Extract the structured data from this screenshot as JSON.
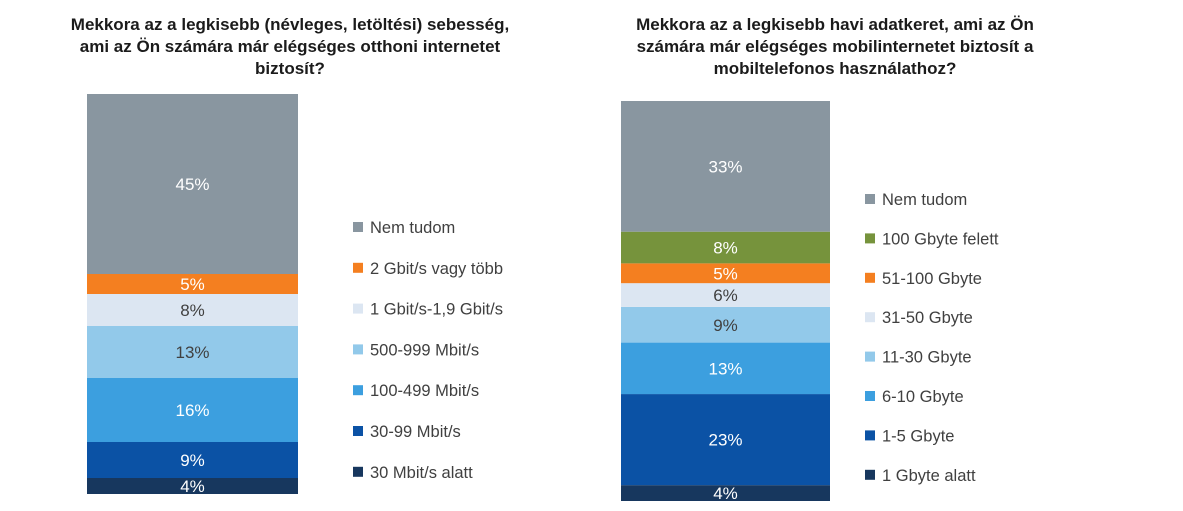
{
  "chart_data": [
    {
      "type": "stacked-bar",
      "title": "Mekkora az a legkisebb (névleges, letöltési) sebesség, ami az Ön számára már elégséges otthoni internetet biztosít?",
      "legend_position": "right",
      "series": [
        {
          "name": "30 Mbit/s alatt",
          "value": 4,
          "label": "4%",
          "color": "#17375e",
          "label_color": "#ffffff"
        },
        {
          "name": "30-99 Mbit/s",
          "value": 9,
          "label": "9%",
          "color": "#0b52a5",
          "label_color": "#ffffff"
        },
        {
          "name": "100-499 Mbit/s",
          "value": 16,
          "label": "16%",
          "color": "#3c9fdf",
          "label_color": "#ffffff"
        },
        {
          "name": "500-999 Mbit/s",
          "value": 13,
          "label": "13%",
          "color": "#92c9ea",
          "label_color": "#404040"
        },
        {
          "name": "1 Gbit/s-1,9 Gbit/s",
          "value": 8,
          "label": "8%",
          "color": "#dce6f2",
          "label_color": "#404040"
        },
        {
          "name": "2 Gbit/s vagy több",
          "value": 5,
          "label": "5%",
          "color": "#f47f20",
          "label_color": "#ffffff"
        },
        {
          "name": "Nem tudom",
          "value": 45,
          "label": "45%",
          "color": "#8996a0",
          "label_color": "#ffffff"
        }
      ]
    },
    {
      "type": "stacked-bar",
      "title": "Mekkora az a legkisebb havi adatkeret, ami az Ön számára már elégséges mobilinternetet biztosít a mobiltelefonos használathoz?",
      "legend_position": "right",
      "series": [
        {
          "name": "1 Gbyte alatt",
          "value": 4,
          "label": "4%",
          "color": "#17375e",
          "label_color": "#ffffff"
        },
        {
          "name": "1-5 Gbyte",
          "value": 23,
          "label": "23%",
          "color": "#0b52a5",
          "label_color": "#ffffff"
        },
        {
          "name": "6-10 Gbyte",
          "value": 13,
          "label": "13%",
          "color": "#3c9fdf",
          "label_color": "#ffffff"
        },
        {
          "name": "11-30 Gbyte",
          "value": 9,
          "label": "9%",
          "color": "#92c9ea",
          "label_color": "#404040"
        },
        {
          "name": "31-50 Gbyte",
          "value": 6,
          "label": "6%",
          "color": "#dce6f2",
          "label_color": "#404040"
        },
        {
          "name": "51-100 Gbyte",
          "value": 5,
          "label": "5%",
          "color": "#f47f20",
          "label_color": "#ffffff"
        },
        {
          "name": "100 Gbyte felett",
          "value": 8,
          "label": "8%",
          "color": "#76933c",
          "label_color": "#ffffff"
        },
        {
          "name": "Nem tudom",
          "value": 33,
          "label": "33%",
          "color": "#8996a0",
          "label_color": "#ffffff"
        }
      ]
    }
  ]
}
